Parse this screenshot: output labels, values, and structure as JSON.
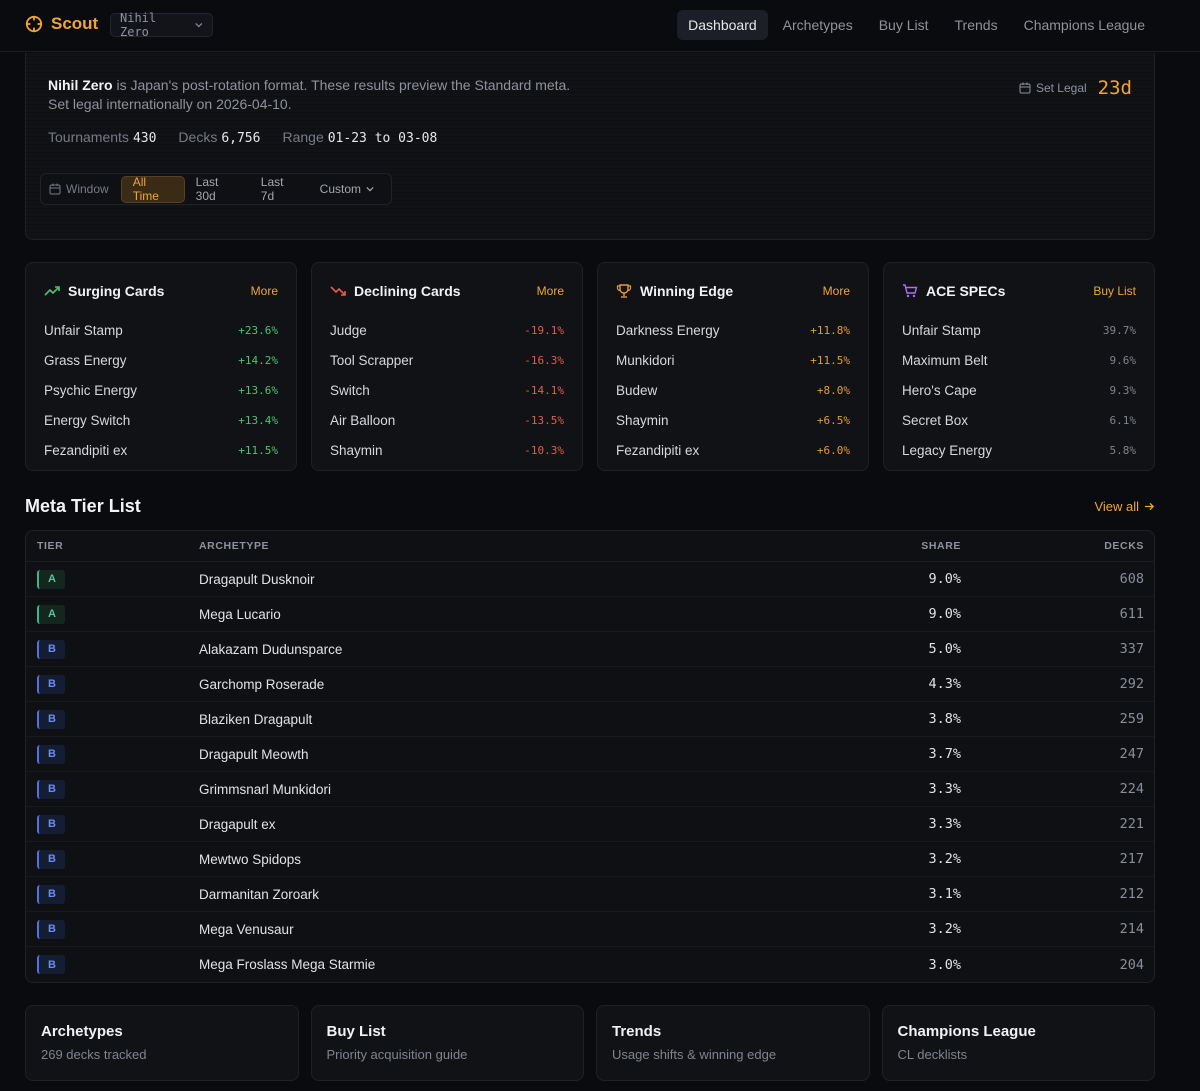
{
  "app": {
    "name": "Scout",
    "format": "Nihil Zero",
    "nav": [
      "Dashboard",
      "Archetypes",
      "Buy List",
      "Trends",
      "Champions League"
    ],
    "accent": "#f0a43a"
  },
  "hero": {
    "format_name": "Nihil Zero",
    "description": " is Japan's post-rotation format. These results preview the Standard meta. Set legal internationally on 2026-04-10.",
    "stats": {
      "tournaments_label": "Tournaments",
      "tournaments": "430",
      "decks_label": "Decks",
      "decks": "6,756",
      "range_label": "Range",
      "range": "01-23 to 03-08"
    },
    "set_legal_label": "Set Legal",
    "set_legal_days": "23d",
    "window_label": "Window",
    "windows": [
      "All Time",
      "Last 30d",
      "Last 7d",
      "Custom"
    ]
  },
  "cards": {
    "surging": {
      "title": "Surging Cards",
      "more": "More",
      "items": [
        {
          "name": "Unfair Stamp",
          "value": "+23.6%"
        },
        {
          "name": "Grass Energy",
          "value": "+14.2%"
        },
        {
          "name": "Psychic Energy",
          "value": "+13.6%"
        },
        {
          "name": "Energy Switch",
          "value": "+13.4%"
        },
        {
          "name": "Fezandipiti ex",
          "value": "+11.5%"
        }
      ]
    },
    "declining": {
      "title": "Declining Cards",
      "more": "More",
      "items": [
        {
          "name": "Judge",
          "value": "-19.1%"
        },
        {
          "name": "Tool Scrapper",
          "value": "-16.3%"
        },
        {
          "name": "Switch",
          "value": "-14.1%"
        },
        {
          "name": "Air Balloon",
          "value": "-13.5%"
        },
        {
          "name": "Shaymin",
          "value": "-10.3%"
        }
      ]
    },
    "winning": {
      "title": "Winning Edge",
      "more": "More",
      "items": [
        {
          "name": "Darkness Energy",
          "value": "+11.8%"
        },
        {
          "name": "Munkidori",
          "value": "+11.5%"
        },
        {
          "name": "Budew",
          "value": "+8.0%"
        },
        {
          "name": "Shaymin",
          "value": "+6.5%"
        },
        {
          "name": "Fezandipiti ex",
          "value": "+6.0%"
        }
      ]
    },
    "acespecs": {
      "title": "ACE SPECs",
      "more": "Buy List",
      "items": [
        {
          "name": "Unfair Stamp",
          "value": "39.7%"
        },
        {
          "name": "Maximum Belt",
          "value": "9.6%"
        },
        {
          "name": "Hero's Cape",
          "value": "9.3%"
        },
        {
          "name": "Secret Box",
          "value": "6.1%"
        },
        {
          "name": "Legacy Energy",
          "value": "5.8%"
        }
      ]
    }
  },
  "tier_list": {
    "title": "Meta Tier List",
    "view_all": "View all",
    "columns": [
      "TIER",
      "ARCHETYPE",
      "SHARE",
      "DECKS"
    ],
    "rows": [
      {
        "tier": "A",
        "archetype": "Dragapult Dusknoir",
        "share": "9.0%",
        "decks": "608"
      },
      {
        "tier": "A",
        "archetype": "Mega Lucario",
        "share": "9.0%",
        "decks": "611"
      },
      {
        "tier": "B",
        "archetype": "Alakazam Dudunsparce",
        "share": "5.0%",
        "decks": "337"
      },
      {
        "tier": "B",
        "archetype": "Garchomp Roserade",
        "share": "4.3%",
        "decks": "292"
      },
      {
        "tier": "B",
        "archetype": "Blaziken Dragapult",
        "share": "3.8%",
        "decks": "259"
      },
      {
        "tier": "B",
        "archetype": "Dragapult Meowth",
        "share": "3.7%",
        "decks": "247"
      },
      {
        "tier": "B",
        "archetype": "Grimmsnarl Munkidori",
        "share": "3.3%",
        "decks": "224"
      },
      {
        "tier": "B",
        "archetype": "Dragapult ex",
        "share": "3.3%",
        "decks": "221"
      },
      {
        "tier": "B",
        "archetype": "Mewtwo Spidops",
        "share": "3.2%",
        "decks": "217"
      },
      {
        "tier": "B",
        "archetype": "Darmanitan Zoroark",
        "share": "3.1%",
        "decks": "212"
      },
      {
        "tier": "B",
        "archetype": "Mega Venusaur",
        "share": "3.2%",
        "decks": "214"
      },
      {
        "tier": "B",
        "archetype": "Mega Froslass Mega Starmie",
        "share": "3.0%",
        "decks": "204"
      }
    ]
  },
  "bottom_links": [
    {
      "title": "Archetypes",
      "subtitle": "269 decks tracked"
    },
    {
      "title": "Buy List",
      "subtitle": "Priority acquisition guide"
    },
    {
      "title": "Trends",
      "subtitle": "Usage shifts & winning edge"
    },
    {
      "title": "Champions League",
      "subtitle": "CL decklists"
    }
  ]
}
